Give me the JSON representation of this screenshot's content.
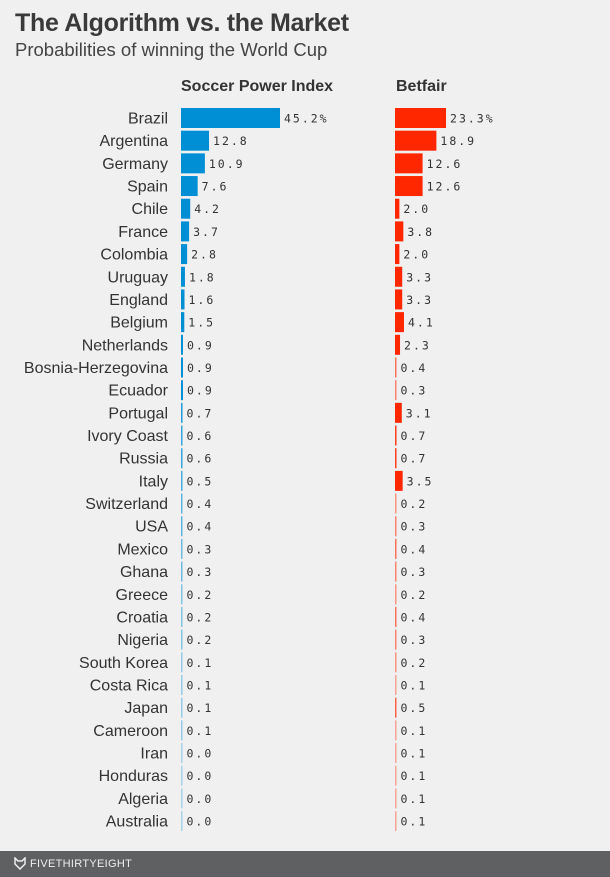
{
  "chart_data": {
    "type": "bar",
    "title": "The Algorithm vs. the Market",
    "subtitle": "Probabilities of winning the World Cup",
    "categories": [
      "Brazil",
      "Argentina",
      "Germany",
      "Spain",
      "Chile",
      "France",
      "Colombia",
      "Uruguay",
      "England",
      "Belgium",
      "Netherlands",
      "Bosnia-Herzegovina",
      "Ecuador",
      "Portugal",
      "Ivory Coast",
      "Russia",
      "Italy",
      "Switzerland",
      "USA",
      "Mexico",
      "Ghana",
      "Greece",
      "Croatia",
      "Nigeria",
      "South Korea",
      "Costa Rica",
      "Japan",
      "Cameroon",
      "Iran",
      "Honduras",
      "Algeria",
      "Australia"
    ],
    "series": [
      {
        "name": "Soccer Power Index",
        "color": "#008fd5",
        "values": [
          45.2,
          12.8,
          10.9,
          7.6,
          4.2,
          3.7,
          2.8,
          1.8,
          1.6,
          1.5,
          0.9,
          0.9,
          0.9,
          0.7,
          0.6,
          0.6,
          0.5,
          0.4,
          0.4,
          0.3,
          0.3,
          0.2,
          0.2,
          0.2,
          0.1,
          0.1,
          0.1,
          0.1,
          0.0,
          0.0,
          0.0,
          0.0
        ]
      },
      {
        "name": "Betfair",
        "color": "#ff2700",
        "values": [
          23.3,
          18.9,
          12.6,
          12.6,
          2.0,
          3.8,
          2.0,
          3.3,
          3.3,
          4.1,
          2.3,
          0.4,
          0.3,
          3.1,
          0.7,
          0.7,
          3.5,
          0.2,
          0.3,
          0.4,
          0.3,
          0.2,
          0.4,
          0.3,
          0.2,
          0.1,
          0.5,
          0.1,
          0.1,
          0.1,
          0.1,
          0.1
        ]
      }
    ],
    "value_format": "first row with %",
    "orientation": "horizontal"
  },
  "footer": {
    "brand": "FIVETHIRTYEIGHT",
    "icon": "fox-icon"
  }
}
